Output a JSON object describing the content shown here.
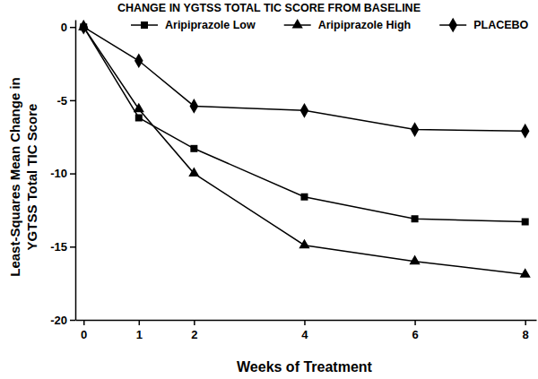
{
  "chart_data": {
    "type": "line",
    "title": "CHANGE IN YGTSS TOTAL TIC SCORE FROM BASELINE",
    "xlabel": "Weeks of Treatment",
    "ylabel": [
      "Least-Squares Mean Change in",
      "YGTSS Total TIC Score"
    ],
    "x": [
      0,
      1,
      2,
      4,
      6,
      8
    ],
    "series": [
      {
        "name": "Aripiprazole Low",
        "color": "#000000",
        "marker": "square",
        "line_style": "solid",
        "values": [
          0,
          -6.2,
          -8.3,
          -11.6,
          -13.1,
          -13.3
        ]
      },
      {
        "name": "Aripiprazole High",
        "color": "#000000",
        "marker": "triangle",
        "line_style": "solid",
        "values": [
          0,
          -5.6,
          -10.0,
          -14.9,
          -16.0,
          -16.9
        ]
      },
      {
        "name": "PLACEBO",
        "color": "#000000",
        "marker": "diamond",
        "line_style": "solid",
        "values": [
          0,
          -2.3,
          -5.4,
          -5.7,
          -7.0,
          -7.1
        ]
      }
    ],
    "xlim": [
      -0.15,
      8.2
    ],
    "xticks": [
      0,
      1,
      2,
      4,
      6,
      8
    ],
    "ylim": [
      -20,
      0.5
    ],
    "yticks": [
      0,
      -5,
      -10,
      -15,
      -20
    ],
    "grid": false,
    "legend": "top"
  }
}
